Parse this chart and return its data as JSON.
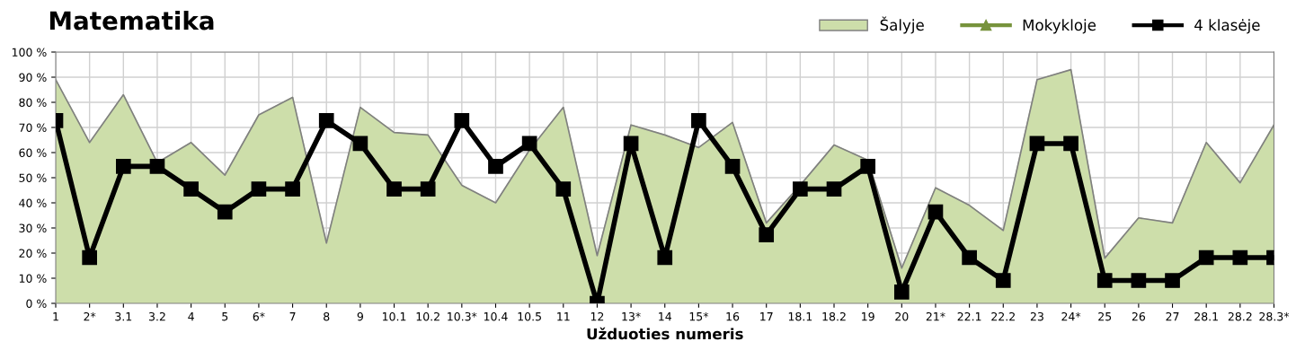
{
  "chart_data": {
    "type": "line",
    "title": "Matematika",
    "xlabel": "Užduoties numeris",
    "categories": [
      "1",
      "2*",
      "3.1",
      "3.2",
      "4",
      "5",
      "6*",
      "7",
      "8",
      "9",
      "10.1",
      "10.2",
      "10.3*",
      "10.4",
      "10.5",
      "11",
      "12",
      "13*",
      "14",
      "15*",
      "16",
      "17",
      "18.1",
      "18.2",
      "19",
      "20",
      "21*",
      "22.1",
      "22.2",
      "23",
      "24*",
      "25",
      "26",
      "27",
      "28.1",
      "28.2",
      "28.3*"
    ],
    "series": [
      {
        "name": "Šalyje",
        "type": "area",
        "color": "#cddeaa",
        "marker": "none",
        "values": [
          89,
          64,
          83,
          56,
          64,
          51,
          75,
          82,
          24,
          78,
          68,
          67,
          47,
          40,
          61,
          78,
          19,
          71,
          67,
          62,
          72,
          32,
          47,
          63,
          57,
          14,
          46,
          39,
          29,
          89,
          93,
          18,
          34,
          32,
          64,
          48,
          71
        ]
      },
      {
        "name": "Mokykloje",
        "color": "#77933c",
        "marker": "triangle",
        "values": [
          null,
          null,
          null,
          null,
          null,
          null,
          null,
          null,
          null,
          null,
          null,
          null,
          null,
          null,
          null,
          null,
          null,
          null,
          null,
          null,
          null,
          null,
          null,
          null,
          null,
          null,
          null,
          null,
          null,
          null,
          null,
          null,
          null,
          null,
          null,
          null,
          null
        ]
      },
      {
        "name": "4 klasėje",
        "color": "#000000",
        "marker": "square",
        "values": [
          72.7,
          18.2,
          54.5,
          54.5,
          45.5,
          36.4,
          45.5,
          45.5,
          72.7,
          63.6,
          45.5,
          45.5,
          72.7,
          54.5,
          63.6,
          45.5,
          0,
          63.6,
          18.2,
          72.7,
          54.5,
          27.3,
          45.5,
          45.5,
          54.5,
          4.5,
          36.4,
          18.2,
          9.1,
          63.6,
          63.6,
          9.1,
          9.1,
          9.1,
          18.2,
          18.2,
          18.2
        ]
      }
    ],
    "ylim": [
      0,
      100
    ],
    "yticks": [
      {
        "value": 0,
        "label": "0 %"
      },
      {
        "value": 10,
        "label": "10 %"
      },
      {
        "value": 20,
        "label": "20 %"
      },
      {
        "value": 30,
        "label": "30 %"
      },
      {
        "value": 40,
        "label": "40 %"
      },
      {
        "value": 50,
        "label": "50 %"
      },
      {
        "value": 60,
        "label": "60 %"
      },
      {
        "value": 70,
        "label": "70 %"
      },
      {
        "value": 80,
        "label": "80 %"
      },
      {
        "value": 90,
        "label": "90 %"
      },
      {
        "value": 100,
        "label": "100 %"
      }
    ],
    "grid": true,
    "legend": "top right"
  }
}
